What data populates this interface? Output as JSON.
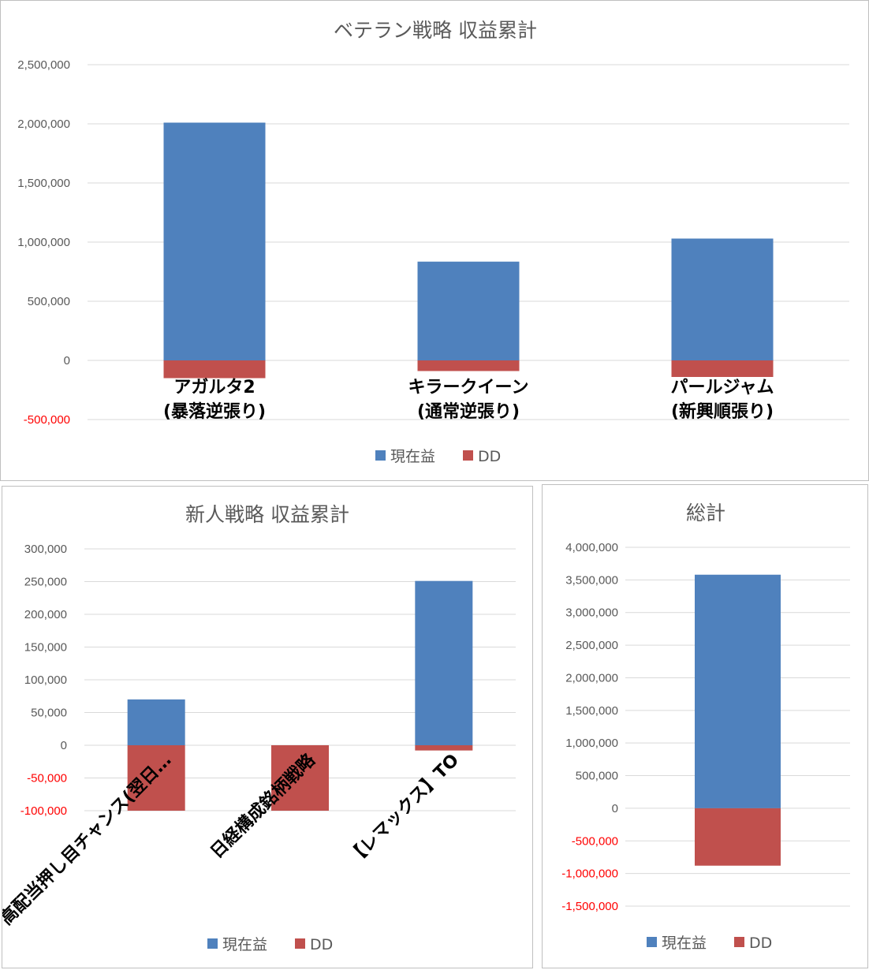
{
  "chart_data": [
    {
      "type": "bar",
      "stacked": true,
      "title": "ベテラン戦略 収益累計",
      "categories": [
        [
          "アガルタ2",
          "(暴落逆張り)"
        ],
        [
          "キラークイーン",
          "(通常逆張り)"
        ],
        [
          "パールジャム",
          "(新興順張り)"
        ]
      ],
      "series": [
        {
          "name": "現在益",
          "color": "#4f81bd",
          "values": [
            2010000,
            835000,
            1030000
          ]
        },
        {
          "name": "DD",
          "color": "#c0504d",
          "values": [
            -150000,
            -90000,
            -140000
          ]
        }
      ],
      "ylim": [
        -500000,
        2500000
      ],
      "yticks": [
        -500000,
        0,
        500000,
        1000000,
        1500000,
        2000000,
        2500000
      ],
      "ytick_labels": [
        "-500,000",
        "0",
        "500,000",
        "1,000,000",
        "1,500,000",
        "2,000,000",
        "2,500,000"
      ],
      "negative_tick_color": "#ff0000",
      "grid": true,
      "legend": "bottom"
    },
    {
      "type": "bar",
      "stacked": true,
      "title": "新人戦略 収益累計",
      "categories": [
        [
          "高配当押し目チャンス(翌日…"
        ],
        [
          "日経構成銘柄戦略"
        ],
        [
          "【レマックス】TO"
        ]
      ],
      "series": [
        {
          "name": "現在益",
          "color": "#4f81bd",
          "values": [
            70000,
            0,
            251000
          ]
        },
        {
          "name": "DD",
          "color": "#c0504d",
          "values": [
            -100000,
            -100000,
            -8000
          ]
        }
      ],
      "ylim": [
        -100000,
        300000
      ],
      "yticks": [
        -100000,
        -50000,
        0,
        50000,
        100000,
        150000,
        200000,
        250000,
        300000
      ],
      "ytick_labels": [
        "-100,000",
        "-50,000",
        "0",
        "50,000",
        "100,000",
        "150,000",
        "200,000",
        "250,000",
        "300,000"
      ],
      "negative_tick_color": "#ff0000",
      "grid": true,
      "legend": "bottom",
      "category_label_rotation": -45
    },
    {
      "type": "bar",
      "stacked": true,
      "title": "総計",
      "categories": [
        [
          ""
        ]
      ],
      "series": [
        {
          "name": "現在益",
          "color": "#4f81bd",
          "values": [
            3580000
          ]
        },
        {
          "name": "DD",
          "color": "#c0504d",
          "values": [
            -880000
          ]
        }
      ],
      "ylim": [
        -1500000,
        4000000
      ],
      "yticks": [
        -1500000,
        -1000000,
        -500000,
        0,
        500000,
        1000000,
        1500000,
        2000000,
        2500000,
        3000000,
        3500000,
        4000000
      ],
      "ytick_labels": [
        "-1,500,000",
        "-1,000,000",
        "-500,000",
        "0",
        "500,000",
        "1,000,000",
        "1,500,000",
        "2,000,000",
        "2,500,000",
        "3,000,000",
        "3,500,000",
        "4,000,000"
      ],
      "negative_tick_color": "#ff0000",
      "grid": true,
      "legend": "bottom"
    }
  ],
  "colors": {
    "positive_tick": "#595959",
    "negative_tick": "#ff0000",
    "grid": "#d9d9d9",
    "border": "#bfbfbf"
  }
}
